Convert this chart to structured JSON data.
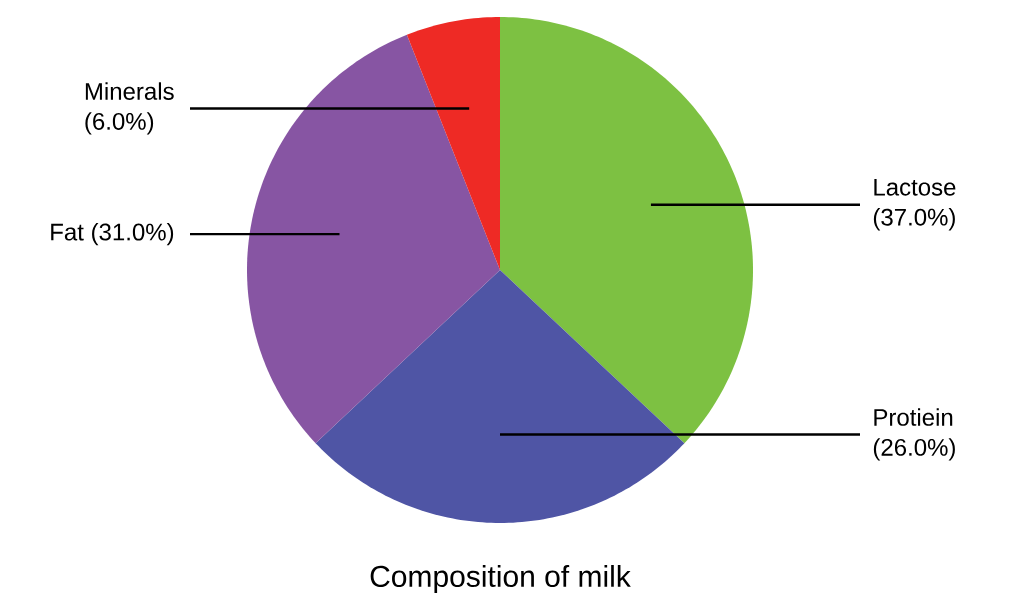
{
  "chart_data": {
    "type": "pie",
    "title": "Composition of milk",
    "categories": [
      "Lactose",
      "Protiein",
      "Fat",
      "Minerals"
    ],
    "values": [
      37,
      26,
      31,
      6
    ],
    "value_labels": [
      "(37.0%)",
      "(26.0%)",
      "(31.0%)",
      "(6.0%)"
    ],
    "colors": [
      "#7dc142",
      "#4f55a5",
      "#8755a3",
      "#ee2a25"
    ]
  }
}
